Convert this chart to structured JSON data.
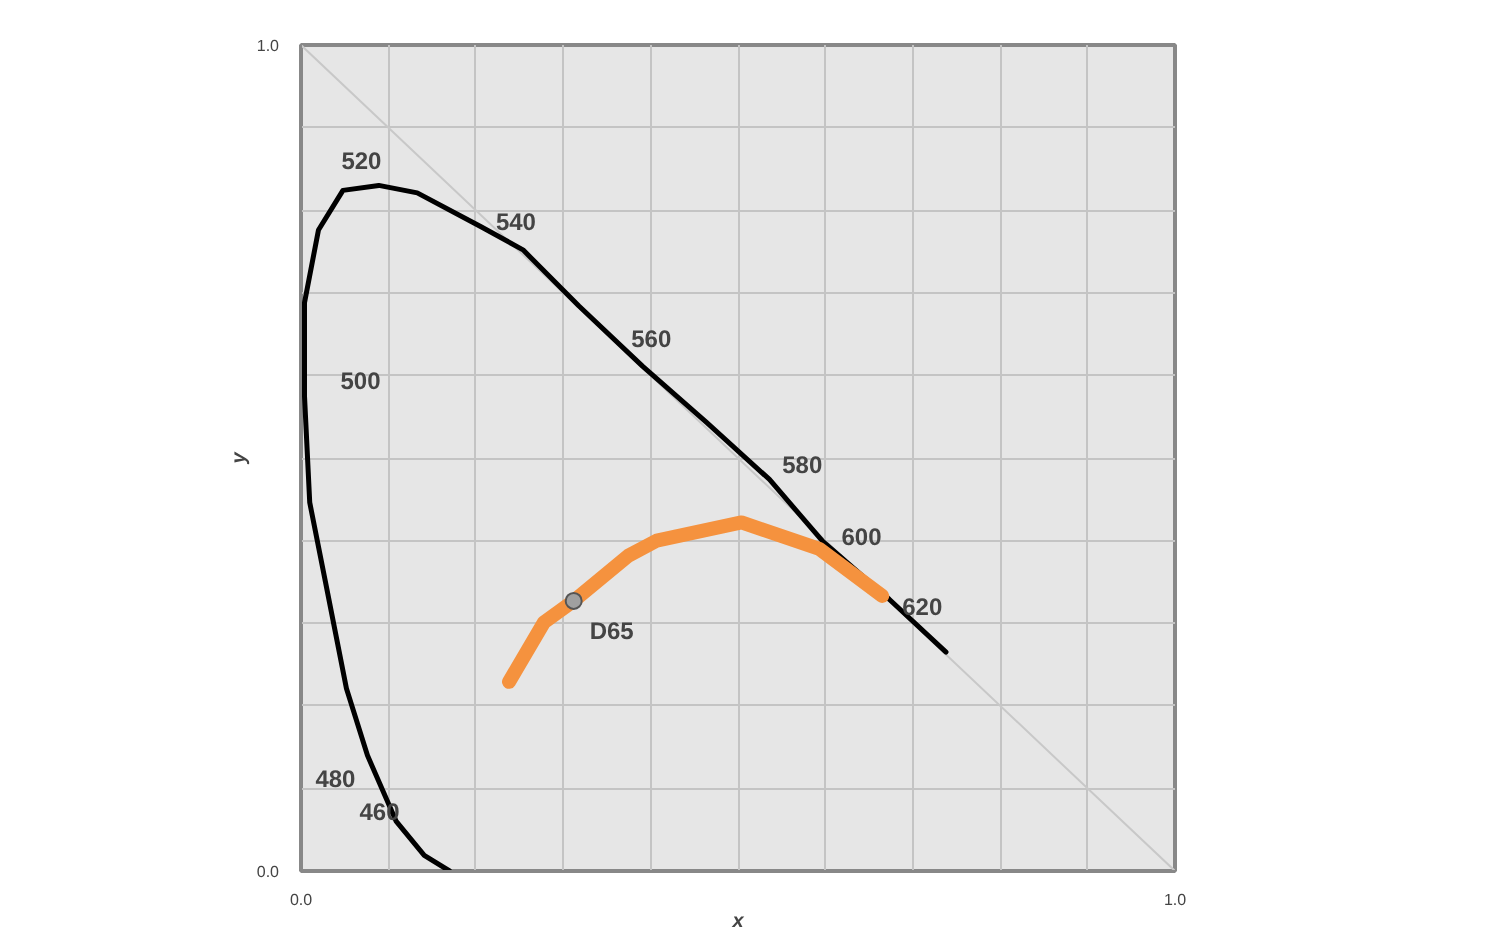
{
  "chart_data": {
    "type": "line",
    "xlabel": "x",
    "ylabel": "y",
    "xlim": [
      0,
      1
    ],
    "ylim": [
      0,
      1
    ],
    "xticks": [
      {
        "value": 0,
        "label": "0.0"
      },
      {
        "value": 0.1,
        "label": null
      },
      {
        "value": 0.2,
        "label": null
      },
      {
        "value": 0.3,
        "label": null
      },
      {
        "value": 0.4,
        "label": null
      },
      {
        "value": 0.5,
        "label": null
      },
      {
        "value": 0.6,
        "label": null
      },
      {
        "value": 0.7,
        "label": null
      },
      {
        "value": 0.8,
        "label": null
      },
      {
        "value": 0.9,
        "label": null
      },
      {
        "value": 1,
        "label": "1.0"
      }
    ],
    "yticks": [
      {
        "value": 0,
        "label": "0.0"
      },
      {
        "value": 0.1,
        "label": null
      },
      {
        "value": 0.2,
        "label": null
      },
      {
        "value": 0.3,
        "label": null
      },
      {
        "value": 0.4,
        "label": null
      },
      {
        "value": 0.5,
        "label": null
      },
      {
        "value": 0.6,
        "label": null
      },
      {
        "value": 0.7,
        "label": null
      },
      {
        "value": 0.8,
        "label": null
      },
      {
        "value": 0.9,
        "label": null
      },
      {
        "value": 1,
        "label": "1.0"
      }
    ],
    "grid": true,
    "legend": false,
    "series": [
      {
        "color": "#c8c8c8",
        "x": [
          0,
          1
        ],
        "values": [
          1,
          0
        ]
      },
      {
        "color": "#000000",
        "x": [
          0.17,
          0.141,
          0.109,
          0.076,
          0.052,
          0.028,
          0.01,
          0.004,
          0.004,
          0.02,
          0.048,
          0.089,
          0.133,
          0.206,
          0.254,
          0.318,
          0.391,
          0.464,
          0.536,
          0.597,
          0.673,
          0.738
        ],
        "values": [
          0.0,
          0.019,
          0.06,
          0.14,
          0.221,
          0.35,
          0.446,
          0.575,
          0.688,
          0.776,
          0.824,
          0.83,
          0.821,
          0.78,
          0.752,
          0.684,
          0.611,
          0.543,
          0.474,
          0.399,
          0.329,
          0.265
        ]
      },
      {
        "color": "#f5923e",
        "x": [
          0.238,
          0.278,
          0.312,
          0.375,
          0.407,
          0.504,
          0.593,
          0.665
        ],
        "values": [
          0.229,
          0.301,
          0.327,
          0.382,
          0.4,
          0.422,
          0.39,
          0.333
        ]
      },
      {
        "type": "scatter",
        "name": "D65",
        "color": "#a0a0a0",
        "marker": "circle",
        "x": [
          0.312
        ],
        "values": [
          0.327
        ]
      }
    ],
    "annotations": [
      {
        "text": "460",
        "x": 0.141,
        "y": 0.019
      },
      {
        "text": "480",
        "x": 0.076,
        "y": 0.14
      },
      {
        "text": "500",
        "x": 0.004,
        "y": 0.575
      },
      {
        "text": "520",
        "x": 0.089,
        "y": 0.83
      },
      {
        "text": "540",
        "x": 0.254,
        "y": 0.752
      },
      {
        "text": "560",
        "x": 0.391,
        "y": 0.611
      },
      {
        "text": "580",
        "x": 0.536,
        "y": 0.474
      },
      {
        "text": "600",
        "x": 0.597,
        "y": 0.399
      },
      {
        "text": "620",
        "x": 0.665,
        "y": 0.325
      }
    ]
  }
}
